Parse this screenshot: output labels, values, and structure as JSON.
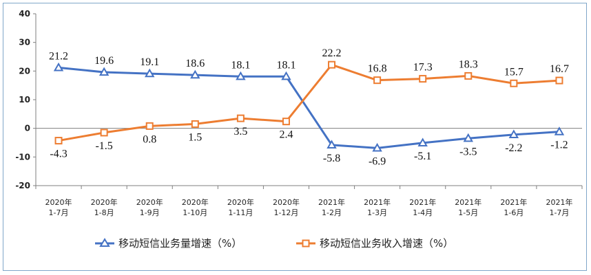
{
  "chart_data": {
    "type": "line",
    "categories": [
      [
        "2020年",
        "1-7月"
      ],
      [
        "2020年",
        "1-8月"
      ],
      [
        "2020年",
        "1-9月"
      ],
      [
        "2020年",
        "1-10月"
      ],
      [
        "2020年",
        "1-11月"
      ],
      [
        "2020年",
        "1-12月"
      ],
      [
        "2021年",
        "1-2月"
      ],
      [
        "2021年",
        "1-3月"
      ],
      [
        "2021年",
        "1-4月"
      ],
      [
        "2021年",
        "1-5月"
      ],
      [
        "2021年",
        "1-6月"
      ],
      [
        "2021年",
        "1-7月"
      ]
    ],
    "series": [
      {
        "name": "移动短信业务量增速（%）",
        "color": "#4472c4",
        "marker": "triangle",
        "values": [
          21.2,
          19.6,
          19.1,
          18.6,
          18.1,
          18.1,
          -5.8,
          -6.9,
          -5.1,
          -3.5,
          -2.2,
          -1.2
        ],
        "labels": [
          "21.2",
          "19.6",
          "19.1",
          "18.6",
          "18.1",
          "18.1",
          "-5.8",
          "-6.9",
          "-5.1",
          "-3.5",
          "-2.2",
          "-1.2"
        ]
      },
      {
        "name": "移动短信业务收入增速（%）",
        "color": "#ed7d31",
        "marker": "square",
        "values": [
          -4.3,
          -1.5,
          0.8,
          1.5,
          3.5,
          2.4,
          22.2,
          16.8,
          17.3,
          18.3,
          15.7,
          16.7
        ],
        "labels": [
          "-4.3",
          "-1.5",
          "0.8",
          "1.5",
          "3.5",
          "2.4",
          "22.2",
          "16.8",
          "17.3",
          "18.3",
          "15.7",
          "16.7"
        ]
      }
    ],
    "yticks": [
      40,
      30,
      20,
      10,
      0,
      -10,
      -20
    ],
    "ytick_labels": [
      "40",
      "30",
      "20",
      "10",
      "0",
      "-10",
      "-20"
    ],
    "ylim": [
      -20,
      40
    ],
    "grid": false,
    "legend_position": "bottom"
  }
}
